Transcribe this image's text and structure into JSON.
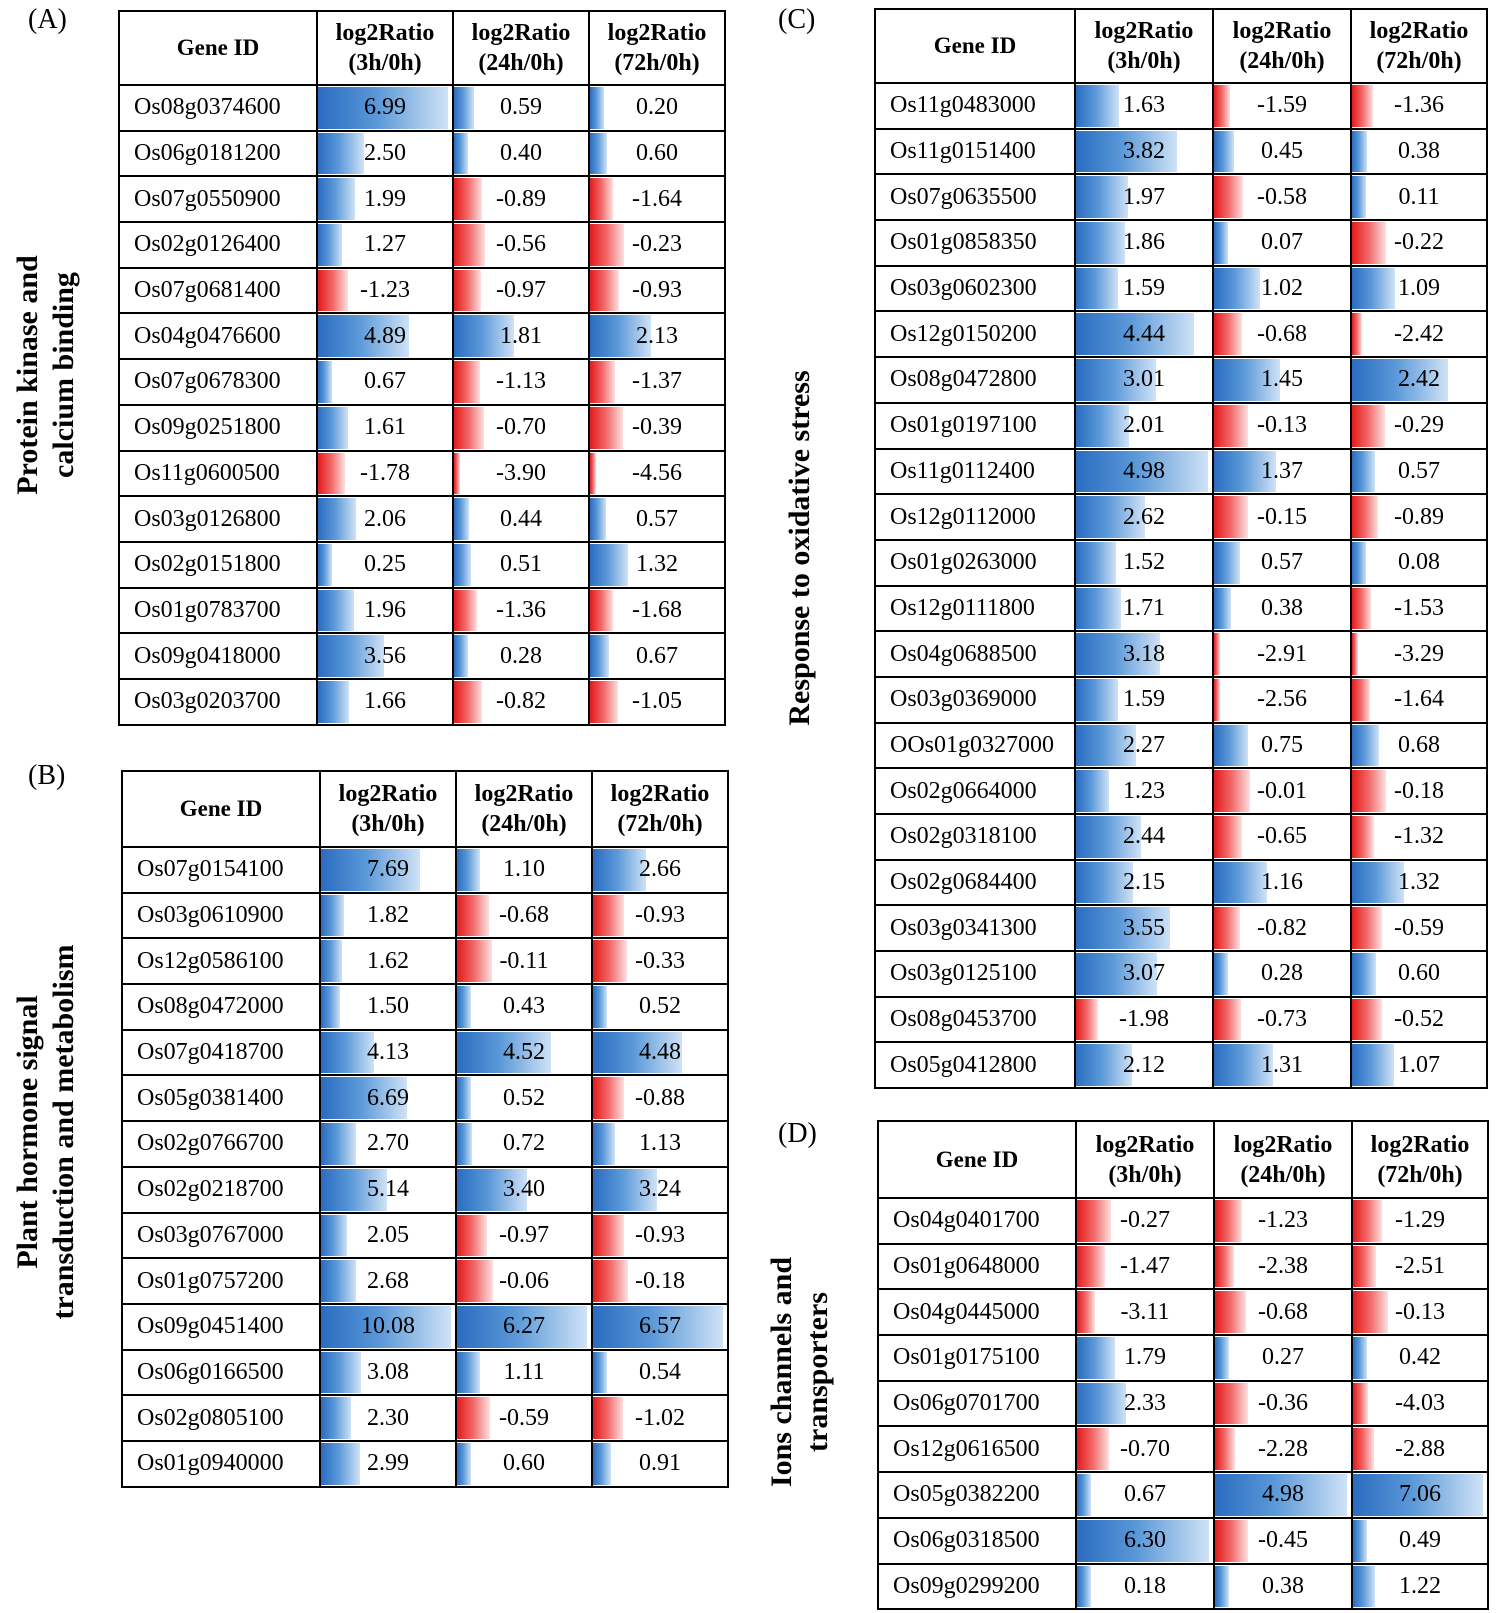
{
  "chart_data": [
    {
      "type": "table",
      "panel": "(A)",
      "category": [
        "Protein kinase and",
        "calcium binding"
      ],
      "columns": [
        "Gene ID",
        "log2Ratio (3h/0h)",
        "log2Ratio (24h/0h)",
        "log2Ratio (72h/0h)"
      ],
      "header": {
        "gene": "Gene ID",
        "cols": [
          [
            "log2Ratio",
            "(3h/0h)"
          ],
          [
            "log2Ratio",
            "(24h/0h)"
          ],
          [
            "log2Ratio",
            "(72h/0h)"
          ]
        ]
      },
      "rows": [
        {
          "gene": "Os08g0374600",
          "values": [
            "6.99",
            "0.59",
            "0.20"
          ]
        },
        {
          "gene": "Os06g0181200",
          "values": [
            "2.50",
            "0.40",
            "0.60"
          ]
        },
        {
          "gene": "Os07g0550900",
          "values": [
            "1.99",
            "-0.89",
            "-1.64"
          ]
        },
        {
          "gene": "Os02g0126400",
          "values": [
            "1.27",
            "-0.56",
            "-0.23"
          ]
        },
        {
          "gene": "Os07g0681400",
          "values": [
            "-1.23",
            "-0.97",
            "-0.93"
          ]
        },
        {
          "gene": "Os04g0476600",
          "values": [
            "4.89",
            "1.81",
            "2.13"
          ]
        },
        {
          "gene": "Os07g0678300",
          "values": [
            "0.67",
            "-1.13",
            "-1.37"
          ]
        },
        {
          "gene": "Os09g0251800",
          "values": [
            "1.61",
            "-0.70",
            "-0.39"
          ]
        },
        {
          "gene": "Os11g0600500",
          "values": [
            "-1.78",
            "-3.90",
            "-4.56"
          ]
        },
        {
          "gene": "Os03g0126800",
          "values": [
            "2.06",
            "0.44",
            "0.57"
          ]
        },
        {
          "gene": "Os02g0151800",
          "values": [
            "0.25",
            "0.51",
            "1.32"
          ]
        },
        {
          "gene": "Os01g0783700",
          "values": [
            "1.96",
            "-1.36",
            "-1.68"
          ]
        },
        {
          "gene": "Os09g0418000",
          "values": [
            "3.56",
            "0.28",
            "0.67"
          ]
        },
        {
          "gene": "Os03g0203700",
          "values": [
            "1.66",
            "-0.82",
            "-1.05"
          ]
        }
      ]
    },
    {
      "type": "table",
      "panel": "(B)",
      "category": [
        "Plant hormone signal",
        "transduction and metabolism"
      ],
      "columns": [
        "Gene ID",
        "log2Ratio (3h/0h)",
        "log2Ratio (24h/0h)",
        "log2Ratio (72h/0h)"
      ],
      "header": {
        "gene": "Gene ID",
        "cols": [
          [
            "log2Ratio",
            "(3h/0h)"
          ],
          [
            "log2Ratio",
            "(24h/0h)"
          ],
          [
            "log2Ratio",
            "(72h/0h)"
          ]
        ]
      },
      "rows": [
        {
          "gene": "Os07g0154100",
          "values": [
            "7.69",
            "1.10",
            "2.66"
          ]
        },
        {
          "gene": "Os03g0610900",
          "values": [
            "1.82",
            "-0.68",
            "-0.93"
          ]
        },
        {
          "gene": "Os12g0586100",
          "values": [
            "1.62",
            "-0.11",
            "-0.33"
          ]
        },
        {
          "gene": "Os08g0472000",
          "values": [
            "1.50",
            "0.43",
            "0.52"
          ]
        },
        {
          "gene": "Os07g0418700",
          "values": [
            "4.13",
            "4.52",
            "4.48"
          ]
        },
        {
          "gene": "Os05g0381400",
          "values": [
            "6.69",
            "0.52",
            "-0.88"
          ]
        },
        {
          "gene": "Os02g0766700",
          "values": [
            "2.70",
            "0.72",
            "1.13"
          ]
        },
        {
          "gene": "Os02g0218700",
          "values": [
            "5.14",
            "3.40",
            "3.24"
          ]
        },
        {
          "gene": "Os03g0767000",
          "values": [
            "2.05",
            "-0.97",
            "-0.93"
          ]
        },
        {
          "gene": "Os01g0757200",
          "values": [
            "2.68",
            "-0.06",
            "-0.18"
          ]
        },
        {
          "gene": "Os09g0451400",
          "values": [
            "10.08",
            "6.27",
            "6.57"
          ]
        },
        {
          "gene": "Os06g0166500",
          "values": [
            "3.08",
            "1.11",
            "0.54"
          ]
        },
        {
          "gene": "Os02g0805100",
          "values": [
            "2.30",
            "-0.59",
            "-1.02"
          ]
        },
        {
          "gene": "Os01g0940000",
          "values": [
            "2.99",
            "0.60",
            "0.91"
          ]
        }
      ]
    },
    {
      "type": "table",
      "panel": "(C)",
      "category": [
        "Response to oxidative stress"
      ],
      "columns": [
        "Gene ID",
        "log2Ratio (3h/0h)",
        "log2Ratio (24h/0h)",
        "log2Ratio (72h/0h)"
      ],
      "header": {
        "gene": "Gene ID",
        "cols": [
          [
            "log2Ratio",
            "(3h/0h)"
          ],
          [
            "log2Ratio",
            "(24h/0h)"
          ],
          [
            "log2Ratio",
            "(72h/0h)"
          ]
        ]
      },
      "rows": [
        {
          "gene": "Os11g0483000",
          "values": [
            "1.63",
            "-1.59",
            "-1.36"
          ]
        },
        {
          "gene": "Os11g0151400",
          "values": [
            "3.82",
            "0.45",
            "0.38"
          ]
        },
        {
          "gene": "Os07g0635500",
          "values": [
            "1.97",
            "-0.58",
            "0.11"
          ]
        },
        {
          "gene": "Os01g0858350",
          "values": [
            "1.86",
            "0.07",
            "-0.22"
          ]
        },
        {
          "gene": "Os03g0602300",
          "values": [
            "1.59",
            "1.02",
            "1.09"
          ]
        },
        {
          "gene": "Os12g0150200",
          "values": [
            "4.44",
            "-0.68",
            "-2.42"
          ]
        },
        {
          "gene": "Os08g0472800",
          "values": [
            "3.01",
            "1.45",
            "2.42"
          ]
        },
        {
          "gene": "Os01g0197100",
          "values": [
            "2.01",
            "-0.13",
            "-0.29"
          ]
        },
        {
          "gene": "Os11g0112400",
          "values": [
            "4.98",
            "1.37",
            "0.57"
          ]
        },
        {
          "gene": "Os12g0112000",
          "values": [
            "2.62",
            "-0.15",
            "-0.89"
          ]
        },
        {
          "gene": "Os01g0263000",
          "values": [
            "1.52",
            "0.57",
            "0.08"
          ]
        },
        {
          "gene": "Os12g0111800",
          "values": [
            "1.71",
            "0.38",
            "-1.53"
          ]
        },
        {
          "gene": "Os04g0688500",
          "values": [
            "3.18",
            "-2.91",
            "-3.29"
          ]
        },
        {
          "gene": "Os03g0369000",
          "values": [
            "1.59",
            "-2.56",
            "-1.64"
          ]
        },
        {
          "gene": "ОOs01g0327000",
          "values": [
            "2.27",
            "0.75",
            "0.68"
          ]
        },
        {
          "gene": "Os02g0664000",
          "values": [
            "1.23",
            "-0.01",
            "-0.18"
          ]
        },
        {
          "gene": "Os02g0318100",
          "values": [
            "2.44",
            "-0.65",
            "-1.32"
          ]
        },
        {
          "gene": "Os02g0684400",
          "values": [
            "2.15",
            "1.16",
            "1.32"
          ]
        },
        {
          "gene": "Os03g0341300",
          "values": [
            "3.55",
            "-0.82",
            "-0.59"
          ]
        },
        {
          "gene": "Os03g0125100",
          "values": [
            "3.07",
            "0.28",
            "0.60"
          ]
        },
        {
          "gene": "Os08g0453700",
          "values": [
            "-1.98",
            "-0.73",
            "-0.52"
          ]
        },
        {
          "gene": "Os05g0412800",
          "values": [
            "2.12",
            "1.31",
            "1.07"
          ]
        }
      ]
    },
    {
      "type": "table",
      "panel": "(D)",
      "category": [
        "Ions channels and",
        "transporters"
      ],
      "columns": [
        "Gene ID",
        "log2Ratio (3h/0h)",
        "log2Ratio (24h/0h)",
        "log2Ratio (72h/0h)"
      ],
      "header": {
        "gene": "Gene ID",
        "cols": [
          [
            "log2Ratio",
            "(3h/0h)"
          ],
          [
            "log2Ratio",
            "(24h/0h)"
          ],
          [
            "log2Ratio",
            "(72h/0h)"
          ]
        ]
      },
      "rows": [
        {
          "gene": "Os04g0401700",
          "values": [
            "-0.27",
            "-1.23",
            "-1.29"
          ]
        },
        {
          "gene": "Os01g0648000",
          "values": [
            "-1.47",
            "-2.38",
            "-2.51"
          ]
        },
        {
          "gene": "Os04g0445000",
          "values": [
            "-3.11",
            "-0.68",
            "-0.13"
          ]
        },
        {
          "gene": "Os01g0175100",
          "values": [
            "1.79",
            "0.27",
            "0.42"
          ]
        },
        {
          "gene": "Os06g0701700",
          "values": [
            "2.33",
            "-0.36",
            "-4.03"
          ]
        },
        {
          "gene": "Os12g0616500",
          "values": [
            "-0.70",
            "-2.28",
            "-2.88"
          ]
        },
        {
          "gene": "Os05g0382200",
          "values": [
            "0.67",
            "4.98",
            "7.06"
          ]
        },
        {
          "gene": "Os06g0318500",
          "values": [
            "6.30",
            "-0.45",
            "0.49"
          ]
        },
        {
          "gene": "Os09g0299200",
          "values": [
            "0.18",
            "0.38",
            "1.22"
          ]
        }
      ]
    }
  ],
  "colors": {
    "positive": "#2a6cc0",
    "negative": "#e31a1a",
    "border": "#000000"
  }
}
